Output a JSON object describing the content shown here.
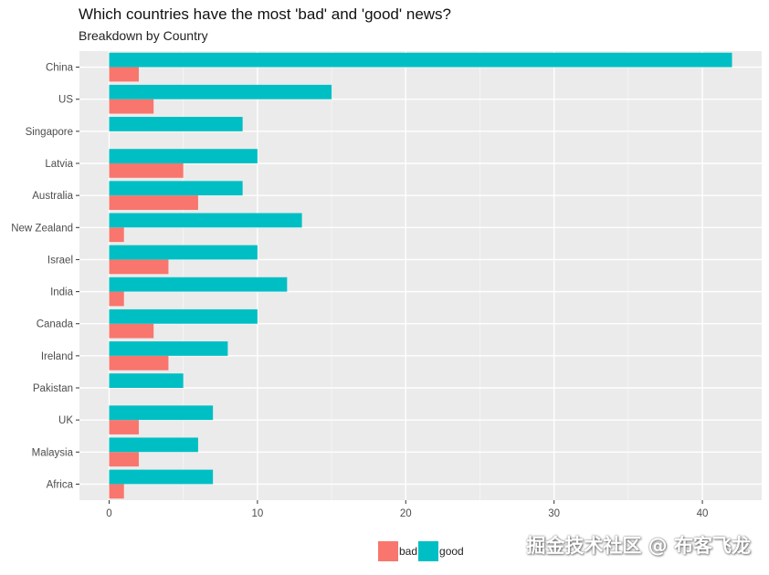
{
  "chart_data": {
    "type": "bar",
    "orientation": "horizontal",
    "title": "Which countries have the most 'bad' and 'good' news?",
    "subtitle": "Breakdown by Country",
    "categories": [
      "China",
      "US",
      "Singapore",
      "Latvia",
      "Australia",
      "New Zealand",
      "Israel",
      "India",
      "Canada",
      "Ireland",
      "Pakistan",
      "UK",
      "Malaysia",
      "Africa"
    ],
    "series": [
      {
        "name": "bad",
        "color": "#F8766D",
        "values": [
          2,
          3,
          0,
          5,
          6,
          1,
          4,
          1,
          3,
          4,
          0,
          2,
          2,
          1
        ]
      },
      {
        "name": "good",
        "color": "#00BFC4",
        "values": [
          42,
          15,
          9,
          10,
          9,
          13,
          10,
          12,
          10,
          8,
          5,
          7,
          6,
          7
        ]
      }
    ],
    "xlim": [
      -2,
      44
    ],
    "xticks": [
      0,
      10,
      20,
      30,
      40
    ],
    "grid": true,
    "legend_position": "bottom"
  },
  "watermark": "掘金技术社区 @ 布客飞龙"
}
